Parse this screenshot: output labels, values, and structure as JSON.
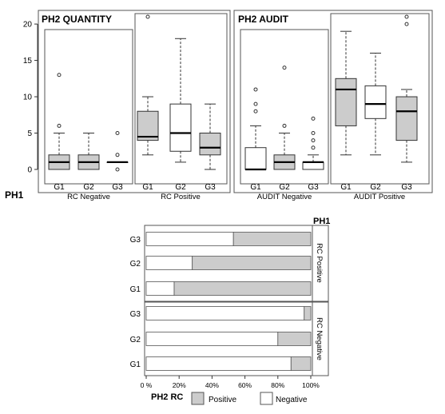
{
  "colors": {
    "gray_fill": "#cccccc",
    "white_fill": "#ffffff",
    "stroke": "#333333",
    "frame": "#555555"
  },
  "chart_data": [
    {
      "type": "box",
      "title": "PH2 QUANTITY",
      "ylim": [
        0,
        21
      ],
      "yticks": [
        0,
        5,
        10,
        15,
        20
      ],
      "row_label": "PH1",
      "groups": [
        {
          "label": "RC Negative",
          "boxes": [
            {
              "category": "G1",
              "min": 0,
              "q1": 0,
              "median": 1,
              "q3": 2,
              "max": 5,
              "outliers": [
                6,
                13
              ],
              "fill": "gray"
            },
            {
              "category": "G2",
              "min": 0,
              "q1": 0,
              "median": 1,
              "q3": 2,
              "max": 5,
              "outliers": [],
              "fill": "gray"
            },
            {
              "category": "G3",
              "min": 1,
              "q1": 1,
              "median": 1,
              "q3": 1,
              "max": 1,
              "outliers": [
                0,
                2,
                5
              ],
              "fill": "gray"
            }
          ]
        },
        {
          "label": "RC Positive",
          "boxes": [
            {
              "category": "G1",
              "min": 2,
              "q1": 4,
              "median": 4.5,
              "q3": 8,
              "max": 10,
              "outliers": [
                21
              ],
              "fill": "gray"
            },
            {
              "category": "G2",
              "min": 1,
              "q1": 2.5,
              "median": 5,
              "q3": 9,
              "max": 18,
              "outliers": [],
              "fill": "white"
            },
            {
              "category": "G3",
              "min": 0,
              "q1": 2,
              "median": 3,
              "q3": 5,
              "max": 9,
              "outliers": [],
              "fill": "gray"
            }
          ]
        }
      ]
    },
    {
      "type": "box",
      "title": "PH2 AUDIT",
      "ylim": [
        0,
        21
      ],
      "groups": [
        {
          "label": "AUDIT Negative",
          "boxes": [
            {
              "category": "G1",
              "min": 0,
              "q1": 0,
              "median": 0,
              "q3": 3,
              "max": 6,
              "outliers": [
                8,
                9,
                11
              ],
              "fill": "white"
            },
            {
              "category": "G2",
              "min": 0,
              "q1": 0,
              "median": 1,
              "q3": 2,
              "max": 5,
              "outliers": [
                6,
                14
              ],
              "fill": "gray"
            },
            {
              "category": "G3",
              "min": 0,
              "q1": 0,
              "median": 1,
              "q3": 1,
              "max": 2,
              "outliers": [
                3,
                4,
                5,
                7
              ],
              "fill": "white"
            }
          ]
        },
        {
          "label": "AUDIT Positive",
          "boxes": [
            {
              "category": "G1",
              "min": 2,
              "q1": 6,
              "median": 11,
              "q3": 12.5,
              "max": 19,
              "outliers": [],
              "fill": "gray"
            },
            {
              "category": "G2",
              "min": 2,
              "q1": 7,
              "median": 9,
              "q3": 11.5,
              "max": 16,
              "outliers": [],
              "fill": "white"
            },
            {
              "category": "G3",
              "min": 1,
              "q1": 4,
              "median": 8,
              "q3": 10,
              "max": 11,
              "outliers": [
                20,
                21
              ],
              "fill": "gray"
            }
          ]
        }
      ]
    },
    {
      "type": "bar",
      "orientation": "horizontal",
      "stacked_percent": true,
      "facet_title": "PH1",
      "xlabel": "PH2 RC",
      "xticks": [
        "0 %",
        "20%",
        "40%",
        "60%",
        "80%",
        "100%"
      ],
      "legend": [
        {
          "name": "Positive",
          "color": "#cccccc"
        },
        {
          "name": "Negative",
          "color": "#ffffff"
        }
      ],
      "legend_position": "bottom",
      "panels": [
        {
          "label": "RC Positive",
          "categories": [
            "G3",
            "G2",
            "G1"
          ],
          "series": [
            {
              "name": "Negative",
              "values": [
                53,
                28,
                17
              ]
            },
            {
              "name": "Positive",
              "values": [
                47,
                72,
                83
              ]
            }
          ]
        },
        {
          "label": "RC Negative",
          "categories": [
            "G3",
            "G2",
            "G1"
          ],
          "series": [
            {
              "name": "Negative",
              "values": [
                96,
                80,
                88
              ]
            },
            {
              "name": "Positive",
              "values": [
                4,
                20,
                12
              ]
            }
          ]
        }
      ]
    }
  ]
}
